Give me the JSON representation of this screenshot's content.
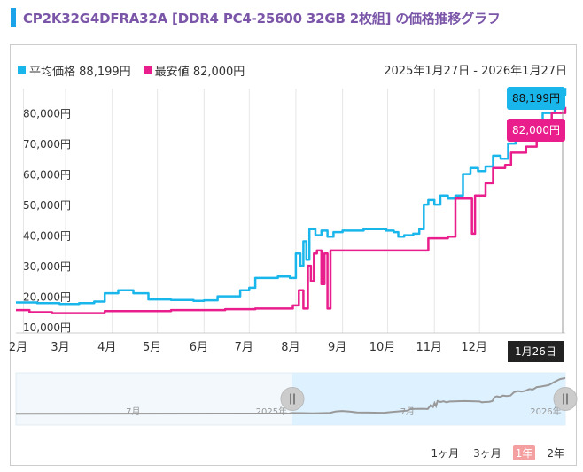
{
  "title": "CP2K32G4DFRA32A [DDR4 PC4-25600 32GB 2枚組] の価格推移グラフ",
  "legend": [
    {
      "label": "平均価格",
      "value": "88,199円",
      "color": "#19b6ec"
    },
    {
      "label": "最安値",
      "value": "82,000円",
      "color": "#e91e8c"
    }
  ],
  "date_range": "2025年1月27日 - 2026年1月27日",
  "tooltip_avg": "88,199円",
  "tooltip_min": "82,000円",
  "date_flag": "1月26日",
  "range_buttons": [
    {
      "label": "1ヶ月",
      "active": false
    },
    {
      "label": "3ヶ月",
      "active": false
    },
    {
      "label": "1年",
      "active": true
    },
    {
      "label": "2年",
      "active": false
    }
  ],
  "navigator": {
    "labels": [
      "7月",
      "2025年",
      "7月",
      "2026年"
    ]
  },
  "chart_data": {
    "type": "line",
    "title": "",
    "xlabel": "",
    "ylabel": "",
    "x_tick_labels": [
      "2月",
      "3月",
      "4月",
      "5月",
      "6月",
      "7月",
      "8月",
      "9月",
      "10月",
      "11月",
      "12月"
    ],
    "y_tick_labels": [
      "10,000円",
      "20,000円",
      "30,000円",
      "40,000円",
      "50,000円",
      "60,000円",
      "70,000円",
      "80,000円"
    ],
    "y_ticks": [
      10000,
      20000,
      30000,
      40000,
      50000,
      60000,
      70000,
      80000
    ],
    "xlim": [
      "2025-01-27",
      "2026-01-27"
    ],
    "ylim": [
      8000,
      88000
    ],
    "grid": "vertical",
    "series": [
      {
        "name": "平均価格",
        "color": "#19b6ec",
        "points": [
          [
            "2025-01-27",
            18000
          ],
          [
            "2025-02-10",
            17800
          ],
          [
            "2025-02-25",
            17500
          ],
          [
            "2025-03-10",
            17800
          ],
          [
            "2025-03-20",
            18300
          ],
          [
            "2025-03-27",
            21000
          ],
          [
            "2025-04-05",
            22000
          ],
          [
            "2025-04-15",
            21000
          ],
          [
            "2025-04-25",
            19000
          ],
          [
            "2025-05-10",
            18800
          ],
          [
            "2025-05-25",
            18500
          ],
          [
            "2025-06-01",
            18700
          ],
          [
            "2025-06-10",
            20000
          ],
          [
            "2025-06-25",
            22000
          ],
          [
            "2025-07-01",
            22800
          ],
          [
            "2025-07-05",
            26000
          ],
          [
            "2025-07-20",
            26500
          ],
          [
            "2025-07-28",
            26000
          ],
          [
            "2025-08-01",
            34000
          ],
          [
            "2025-08-04",
            30000
          ],
          [
            "2025-08-06",
            38000
          ],
          [
            "2025-08-08",
            32000
          ],
          [
            "2025-08-10",
            42000
          ],
          [
            "2025-08-14",
            40000
          ],
          [
            "2025-08-18",
            41500
          ],
          [
            "2025-08-22",
            39500
          ],
          [
            "2025-08-26",
            41000
          ],
          [
            "2025-09-01",
            41500
          ],
          [
            "2025-09-15",
            42000
          ],
          [
            "2025-09-30",
            41500
          ],
          [
            "2025-10-05",
            41000
          ],
          [
            "2025-10-08",
            39500
          ],
          [
            "2025-10-12",
            40000
          ],
          [
            "2025-10-18",
            40500
          ],
          [
            "2025-10-22",
            42000
          ],
          [
            "2025-10-25",
            50000
          ],
          [
            "2025-10-28",
            51500
          ],
          [
            "2025-11-01",
            50000
          ],
          [
            "2025-11-05",
            53000
          ],
          [
            "2025-11-10",
            52000
          ],
          [
            "2025-11-15",
            53000
          ],
          [
            "2025-11-20",
            60000
          ],
          [
            "2025-11-25",
            62000
          ],
          [
            "2025-11-30",
            61000
          ],
          [
            "2025-12-05",
            62500
          ],
          [
            "2025-12-10",
            66000
          ],
          [
            "2025-12-15",
            65000
          ],
          [
            "2025-12-20",
            70000
          ],
          [
            "2025-12-25",
            71000
          ],
          [
            "2026-01-05",
            74000
          ],
          [
            "2026-01-12",
            80000
          ],
          [
            "2026-01-20",
            86000
          ],
          [
            "2026-01-27",
            88199
          ]
        ]
      },
      {
        "name": "最安値",
        "color": "#e91e8c",
        "points": [
          [
            "2025-01-27",
            15500
          ],
          [
            "2025-02-05",
            14800
          ],
          [
            "2025-02-20",
            14500
          ],
          [
            "2025-03-15",
            14500
          ],
          [
            "2025-03-27",
            15200
          ],
          [
            "2025-04-15",
            15200
          ],
          [
            "2025-05-10",
            15500
          ],
          [
            "2025-06-01",
            15500
          ],
          [
            "2025-06-15",
            15800
          ],
          [
            "2025-07-05",
            16000
          ],
          [
            "2025-07-25",
            16000
          ],
          [
            "2025-07-30",
            17000
          ],
          [
            "2025-08-03",
            22000
          ],
          [
            "2025-08-06",
            16000
          ],
          [
            "2025-08-09",
            30000
          ],
          [
            "2025-08-11",
            25000
          ],
          [
            "2025-08-13",
            34000
          ],
          [
            "2025-08-15",
            35000
          ],
          [
            "2025-08-18",
            24000
          ],
          [
            "2025-08-20",
            34000
          ],
          [
            "2025-08-22",
            16000
          ],
          [
            "2025-08-24",
            35000
          ],
          [
            "2025-08-28",
            35000
          ],
          [
            "2025-09-15",
            35000
          ],
          [
            "2025-10-10",
            35000
          ],
          [
            "2025-10-25",
            35000
          ],
          [
            "2025-10-28",
            39000
          ],
          [
            "2025-11-10",
            39500
          ],
          [
            "2025-11-15",
            52000
          ],
          [
            "2025-11-22",
            52000
          ],
          [
            "2025-11-26",
            40500
          ],
          [
            "2025-11-28",
            53000
          ],
          [
            "2025-12-05",
            57000
          ],
          [
            "2025-12-10",
            62000
          ],
          [
            "2025-12-18",
            63000
          ],
          [
            "2025-12-22",
            67000
          ],
          [
            "2026-01-01",
            69000
          ],
          [
            "2026-01-08",
            75000
          ],
          [
            "2026-01-18",
            80000
          ],
          [
            "2026-01-27",
            82000
          ]
        ]
      }
    ]
  }
}
